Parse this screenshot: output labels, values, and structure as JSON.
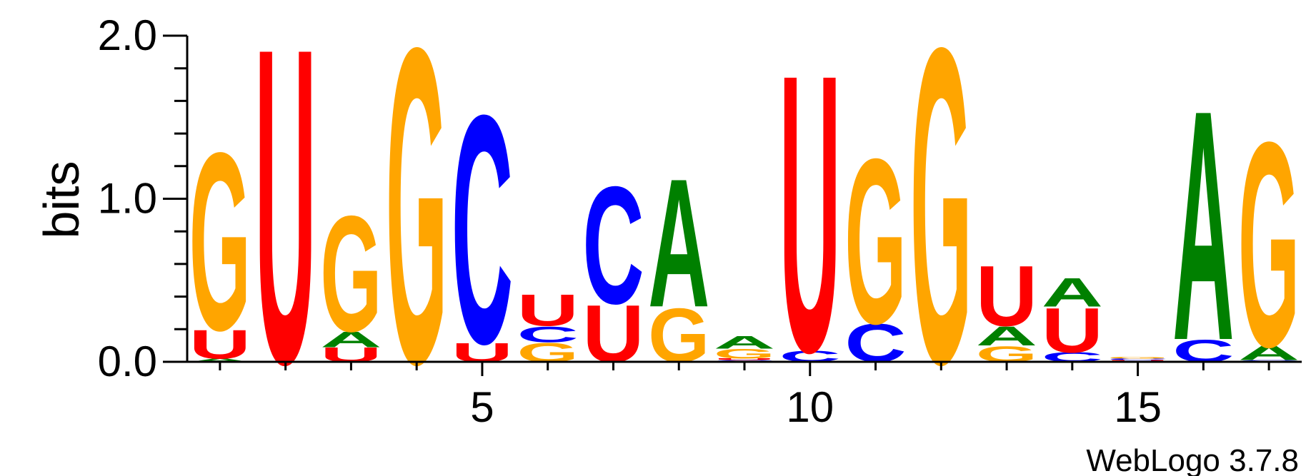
{
  "chart_data": {
    "type": "sequence-logo",
    "ylabel": "bits",
    "ylim": [
      0,
      2.0
    ],
    "yticks": [
      "0.0",
      "1.0",
      "2.0"
    ],
    "yminor_step": 0.2,
    "xlim": [
      0.5,
      17.5
    ],
    "xticks": [
      5,
      10,
      15
    ],
    "colors": {
      "A": "#008000",
      "C": "#0000ff",
      "G": "#ffa500",
      "U": "#ff0000"
    },
    "positions": [
      {
        "pos": 1,
        "stack": [
          [
            "A",
            0.02
          ],
          [
            "U",
            0.18
          ],
          [
            "G",
            1.12
          ]
        ]
      },
      {
        "pos": 2,
        "stack": [
          [
            "U",
            1.99
          ]
        ]
      },
      {
        "pos": 3,
        "stack": [
          [
            "U",
            0.09
          ],
          [
            "A",
            0.1
          ],
          [
            "G",
            0.73
          ]
        ]
      },
      {
        "pos": 4,
        "stack": [
          [
            "G",
            1.99
          ]
        ]
      },
      {
        "pos": 5,
        "stack": [
          [
            "U",
            0.12
          ],
          [
            "C",
            1.44
          ]
        ]
      },
      {
        "pos": 6,
        "stack": [
          [
            "G",
            0.12
          ],
          [
            "C",
            0.1
          ],
          [
            "U",
            0.2
          ]
        ]
      },
      {
        "pos": 7,
        "stack": [
          [
            "U",
            0.36
          ],
          [
            "C",
            0.74
          ]
        ]
      },
      {
        "pos": 8,
        "stack": [
          [
            "G",
            0.34
          ],
          [
            "A",
            0.81
          ]
        ]
      },
      {
        "pos": 9,
        "stack": [
          [
            "C",
            0.01
          ],
          [
            "U",
            0.01
          ],
          [
            "G",
            0.06
          ],
          [
            "A",
            0.08
          ]
        ]
      },
      {
        "pos": 10,
        "stack": [
          [
            "C",
            0.07
          ],
          [
            "U",
            1.75
          ]
        ]
      },
      {
        "pos": 11,
        "stack": [
          [
            "C",
            0.24
          ],
          [
            "G",
            1.04
          ]
        ]
      },
      {
        "pos": 12,
        "stack": [
          [
            "G",
            1.99
          ]
        ]
      },
      {
        "pos": 13,
        "stack": [
          [
            "G",
            0.1
          ],
          [
            "A",
            0.12
          ],
          [
            "U",
            0.38
          ]
        ]
      },
      {
        "pos": 14,
        "stack": [
          [
            "C",
            0.06
          ],
          [
            "U",
            0.28
          ],
          [
            "A",
            0.18
          ]
        ]
      },
      {
        "pos": 15,
        "stack": [
          [
            "U",
            0.01
          ],
          [
            "C",
            0.01
          ],
          [
            "G",
            0.01
          ]
        ]
      },
      {
        "pos": 16,
        "stack": [
          [
            "C",
            0.14
          ],
          [
            "A",
            1.45
          ]
        ]
      },
      {
        "pos": 17,
        "stack": [
          [
            "C",
            0.01
          ],
          [
            "A",
            0.09
          ],
          [
            "G",
            1.29
          ]
        ]
      }
    ]
  },
  "watermark": "WebLogo 3.7.8"
}
